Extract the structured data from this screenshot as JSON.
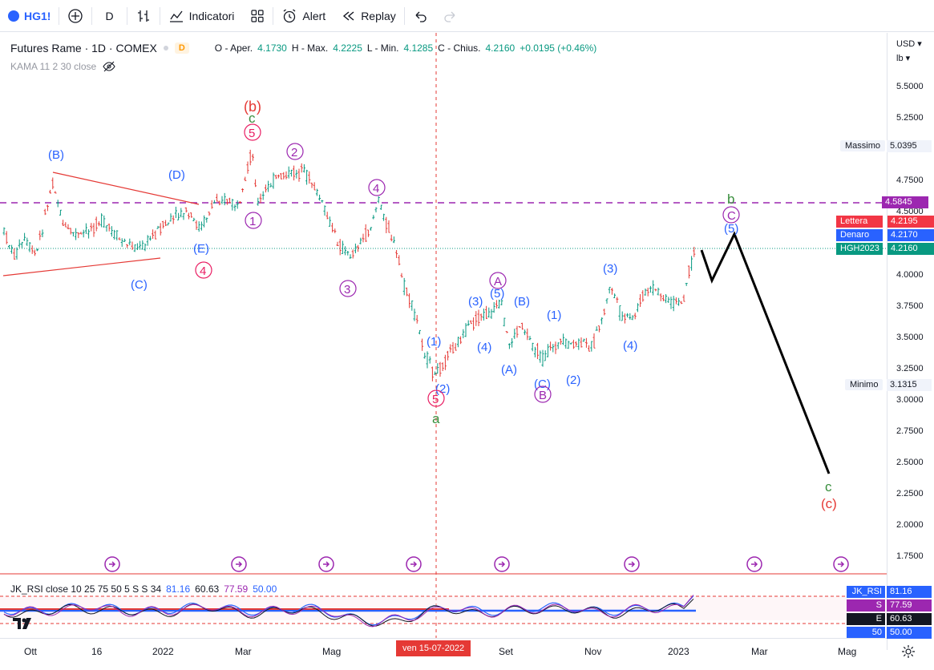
{
  "toolbar": {
    "symbol": "HG1!",
    "interval": "D",
    "indicators_label": "Indicatori",
    "alert_label": "Alert",
    "replay_label": "Replay"
  },
  "legend": {
    "name": "Futures Rame · 1D · COMEX",
    "badge": "D",
    "open_label": "O - Aper.",
    "open": "4.1730",
    "high_label": "H - Max.",
    "high": "4.2225",
    "low_label": "L - Min.",
    "low": "4.1285",
    "close_label": "C - Chius.",
    "close": "4.2160",
    "change": "+0.0195 (+0.46%)",
    "kama": "KAMA 11 2 30 close"
  },
  "price_axis": {
    "currency": "USD",
    "unit": "lb",
    "ticks": [
      "5.5000",
      "5.2500",
      "4.7500",
      "4.5000",
      "4.0000",
      "3.7500",
      "3.5000",
      "3.2500",
      "3.0000",
      "2.7500",
      "2.5000",
      "2.2500",
      "2.0000",
      "1.7500"
    ]
  },
  "levels": {
    "max_label": "Massimo",
    "max_value": "5.0395",
    "min_label": "Minimo",
    "min_value": "3.1315",
    "hline_value": "4.5845",
    "ask_label": "Lettera",
    "ask_value": "4.2195",
    "bid_label": "Denaro",
    "bid_value": "4.2170",
    "symbol_label": "HGH2023",
    "symbol_value": "4.2160"
  },
  "rsi": {
    "title": "JK_RSI close 10 25 75 50 5 S S 34",
    "v1": "81.16",
    "v2": "60.63",
    "v3": "77.59",
    "v4": "50.00",
    "badges": [
      {
        "k": "JK_RSI",
        "v": "81.16",
        "color": "#2962ff"
      },
      {
        "k": "S",
        "v": "77.59",
        "color": "#9c27b0"
      },
      {
        "k": "E",
        "v": "60.63",
        "color": "#131722"
      },
      {
        "k": "50",
        "v": "50.00",
        "color": "#2962ff"
      }
    ]
  },
  "time_axis": {
    "labels": [
      "Ott",
      "16",
      "2022",
      "Mar",
      "Mag",
      "Set",
      "Nov",
      "2023",
      "Mar",
      "Mag"
    ],
    "crosshair_date": "ven 15-07-2022"
  },
  "waves": {
    "B_top": "(B)",
    "D": "(D)",
    "E": "(E)",
    "C_low": "(C)",
    "four_a": "4",
    "b_red": "(b)",
    "c_green": "c",
    "five_top": "5",
    "one": "1",
    "two": "2",
    "three": "3",
    "four_b": "4",
    "p1": "(1)",
    "p2": "(2)",
    "five_low": "5",
    "a_green": "a",
    "p3": "(3)",
    "p4": "(4)",
    "p5": "(5)",
    "A_circ": "A",
    "pA": "(A)",
    "pB": "(B)",
    "pC": "(C)",
    "B_circ": "B",
    "q1": "(1)",
    "q2": "(2)",
    "q3": "(3)",
    "q4": "(4)",
    "q5": "(5)",
    "C_circ": "C",
    "b_green": "b",
    "c_end_green": "c",
    "c_end_red": "(c)"
  },
  "colors": {
    "accent": "#2962ff",
    "bear": "#e53935",
    "bull": "#089981",
    "wave_blue": "#2962ff",
    "wave_pink": "#e91e63",
    "wave_purple": "#9c27b0",
    "wave_green": "#388e3c"
  }
}
